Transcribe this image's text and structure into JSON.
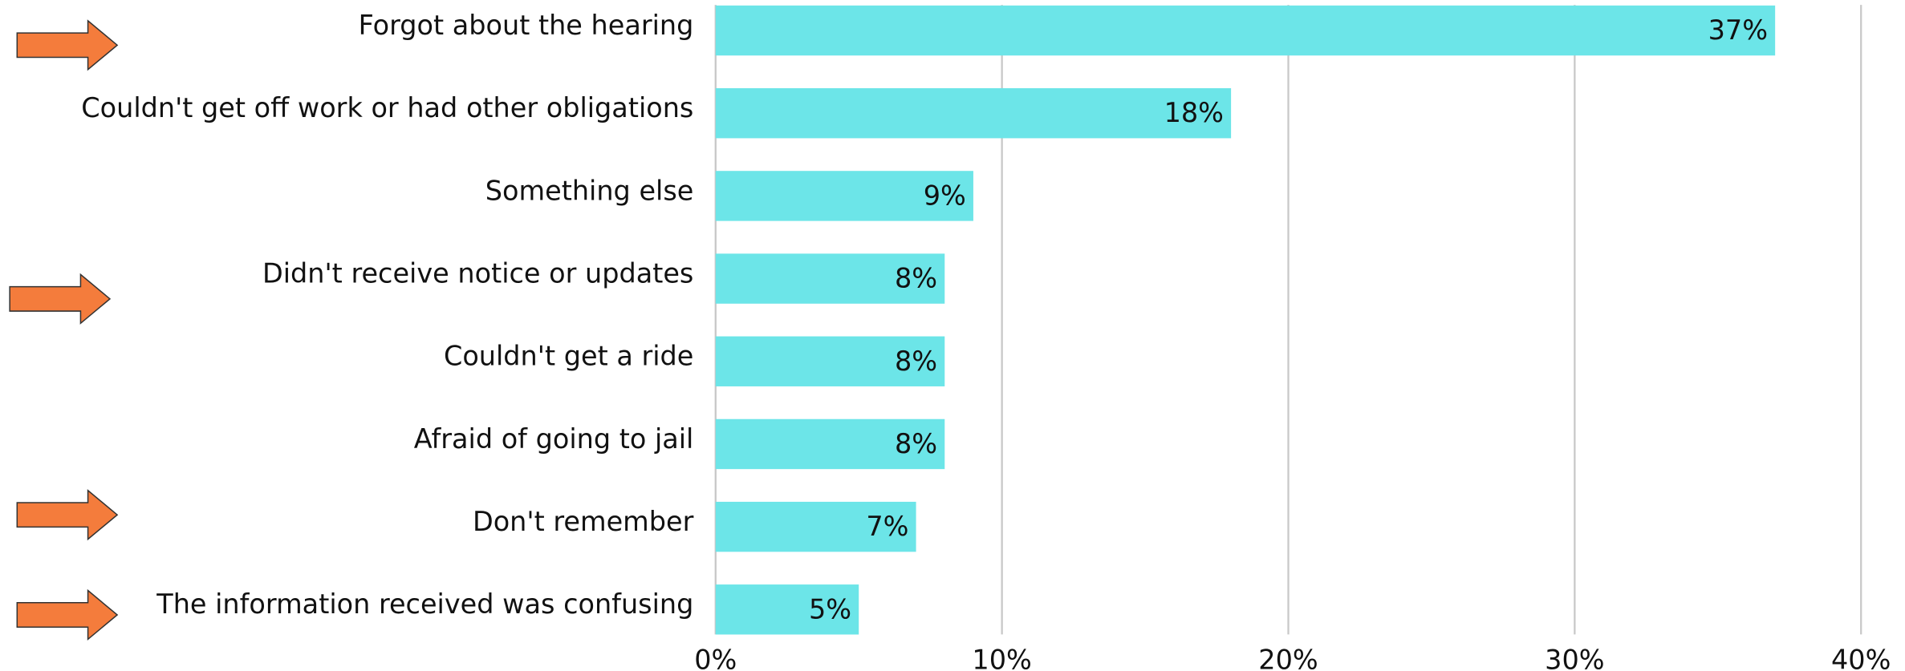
{
  "chart_data": {
    "type": "bar",
    "orientation": "horizontal",
    "categories": [
      "Forgot about the hearing",
      "Couldn't get off work or had other obligations",
      "Something else",
      "Didn't receive notice or updates",
      "Couldn't get a ride",
      "Afraid of going to jail",
      "Don't remember",
      "The information received was confusing"
    ],
    "values": [
      37,
      18,
      9,
      8,
      8,
      8,
      7,
      5
    ],
    "value_labels": [
      "37%",
      "18%",
      "9%",
      "8%",
      "8%",
      "8%",
      "7%",
      "5%"
    ],
    "color": "#6ce5e8",
    "xlim": [
      0,
      40
    ],
    "xticks": [
      {
        "value": 0,
        "label": "0%"
      },
      {
        "value": 10,
        "label": "10%"
      },
      {
        "value": 20,
        "label": "20%"
      },
      {
        "value": 30,
        "label": "30%"
      },
      {
        "value": 40,
        "label": "40%"
      }
    ],
    "grid": true
  }
}
